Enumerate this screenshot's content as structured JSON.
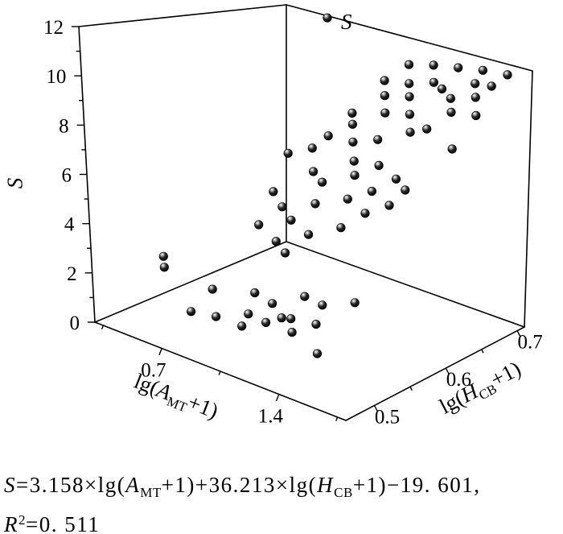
{
  "chart_data": {
    "type": "scatter",
    "projection": "3d",
    "title": "S",
    "zlabel": "S",
    "xlabel": "lg(A_MT+1)",
    "ylabel": "lg(H_CB+1)",
    "xlabel_parts": [
      {
        "t": "lg(",
        "s": "n"
      },
      {
        "t": "A",
        "s": "i"
      },
      {
        "t": "MT",
        "s": "sub"
      },
      {
        "t": "+1)",
        "s": "n"
      }
    ],
    "ylabel_parts": [
      {
        "t": "lg(",
        "s": "n"
      },
      {
        "t": "H",
        "s": "i"
      },
      {
        "t": "CB",
        "s": "sub"
      },
      {
        "t": "+1)",
        "s": "n"
      }
    ],
    "xlim": [
      0.3,
      1.8
    ],
    "ylim": [
      0.46,
      0.71
    ],
    "zlim": [
      0,
      12
    ],
    "x_ticks": {
      "major": [
        0.7,
        1.4
      ],
      "labels": [
        "0.7",
        "1.4"
      ],
      "minor": [
        0.35,
        1.05,
        1.75
      ]
    },
    "y_ticks": {
      "major": [
        0.5,
        0.6,
        0.7
      ],
      "labels": [
        "0.5",
        "0.6",
        "0.7"
      ],
      "minor": [
        0.55,
        0.65
      ]
    },
    "z_ticks": {
      "major": [
        0,
        2,
        4,
        6,
        8,
        10,
        12
      ],
      "labels": [
        "0",
        "2",
        "4",
        "6",
        "8",
        "10",
        "12"
      ],
      "minor": [
        1,
        3,
        5,
        7,
        9,
        11
      ]
    },
    "marker": {
      "shape": "sphere",
      "color": "#000000",
      "highlight": "#ffffff",
      "radius_px": 5.3
    },
    "grid": false,
    "legend": "none",
    "points_xyz": [
      [
        0.85,
        0.5,
        1.2
      ],
      [
        1.05,
        0.49,
        1.5
      ],
      [
        1.2,
        0.51,
        2.0
      ],
      [
        1.3,
        0.5,
        2.4
      ],
      [
        1.1,
        0.52,
        2.2
      ],
      [
        0.95,
        0.53,
        2.1
      ],
      [
        1.25,
        0.53,
        2.8
      ],
      [
        1.4,
        0.52,
        3.0
      ],
      [
        1.15,
        0.5,
        1.8
      ],
      [
        1.0,
        0.51,
        1.6
      ],
      [
        1.35,
        0.49,
        2.1
      ],
      [
        0.7,
        0.5,
        1.0
      ],
      [
        0.45,
        0.52,
        2.4
      ],
      [
        0.5,
        0.51,
        2.2
      ],
      [
        1.5,
        0.49,
        1.6
      ],
      [
        1.55,
        0.53,
        3.4
      ],
      [
        0.6,
        0.55,
        1.0
      ],
      [
        1.45,
        0.5,
        2.6
      ],
      [
        0.9,
        0.57,
        3.7
      ],
      [
        1.05,
        0.58,
        4.3
      ],
      [
        1.2,
        0.59,
        4.9
      ],
      [
        0.8,
        0.6,
        4.6
      ],
      [
        1.0,
        0.6,
        5.3
      ],
      [
        1.15,
        0.61,
        5.8
      ],
      [
        1.3,
        0.6,
        5.7
      ],
      [
        0.95,
        0.62,
        5.9
      ],
      [
        1.1,
        0.63,
        6.5
      ],
      [
        1.25,
        0.62,
        6.3
      ],
      [
        0.85,
        0.63,
        6.0
      ],
      [
        1.4,
        0.61,
        6.2
      ],
      [
        1.05,
        0.64,
        6.9
      ],
      [
        1.2,
        0.64,
        7.1
      ],
      [
        0.75,
        0.58,
        3.9
      ],
      [
        0.9,
        0.59,
        4.4
      ],
      [
        1.35,
        0.63,
        7.0
      ],
      [
        0.7,
        0.61,
        4.9
      ],
      [
        1.45,
        0.62,
        6.9
      ],
      [
        1.0,
        0.56,
        3.6
      ],
      [
        0.95,
        0.66,
        7.3
      ],
      [
        1.1,
        0.66,
        7.8
      ],
      [
        1.25,
        0.67,
        8.4
      ],
      [
        0.9,
        0.67,
        7.9
      ],
      [
        1.05,
        0.68,
        8.7
      ],
      [
        1.2,
        0.68,
        9.0
      ],
      [
        1.35,
        0.67,
        8.8
      ],
      [
        1.0,
        0.69,
        9.3
      ],
      [
        1.15,
        0.69,
        9.6
      ],
      [
        1.3,
        0.7,
        10.2
      ],
      [
        0.85,
        0.68,
        8.2
      ],
      [
        1.45,
        0.68,
        9.7
      ],
      [
        1.1,
        0.7,
        10.0
      ],
      [
        1.25,
        0.7,
        10.4
      ],
      [
        1.4,
        0.69,
        10.1
      ],
      [
        0.95,
        0.7,
        9.8
      ],
      [
        1.5,
        0.7,
        10.9
      ],
      [
        1.05,
        0.71,
        10.7
      ],
      [
        1.2,
        0.71,
        11.0
      ],
      [
        1.55,
        0.69,
        10.5
      ],
      [
        1.35,
        0.71,
        11.2
      ],
      [
        1.5,
        0.71,
        11.4
      ],
      [
        0.8,
        0.66,
        7.2
      ],
      [
        1.6,
        0.7,
        11.0
      ],
      [
        1.65,
        0.71,
        11.5
      ],
      [
        0.75,
        0.65,
        6.6
      ],
      [
        1.55,
        0.66,
        8.5
      ],
      [
        0.55,
        0.71,
        11.9
      ],
      [
        1.6,
        0.68,
        9.9
      ],
      [
        0.65,
        0.64,
        6.2
      ]
    ],
    "regression": {
      "coef_lgA": 3.158,
      "coef_lgH": 36.213,
      "intercept": -19.601,
      "r_squared": 0.511
    }
  },
  "equation": {
    "line1_parts": [
      {
        "t": "S",
        "s": "i"
      },
      {
        "t": "=3.158×lg(",
        "s": "n"
      },
      {
        "t": "A",
        "s": "i"
      },
      {
        "t": "MT",
        "s": "sub"
      },
      {
        "t": "+1)+36.213×lg(",
        "s": "n"
      },
      {
        "t": "H",
        "s": "i"
      },
      {
        "t": "CB",
        "s": "sub"
      },
      {
        "t": "+1)−19. 601,",
        "s": "n"
      }
    ],
    "line2_parts": [
      {
        "t": "R",
        "s": "i"
      },
      {
        "t": "2",
        "s": "sup"
      },
      {
        "t": "=0. 511",
        "s": "n"
      }
    ],
    "full_text": "S=3.158×lg(A_MT+1)+36.213×lg(H_CB+1)−19. 601, R²=0. 511"
  }
}
